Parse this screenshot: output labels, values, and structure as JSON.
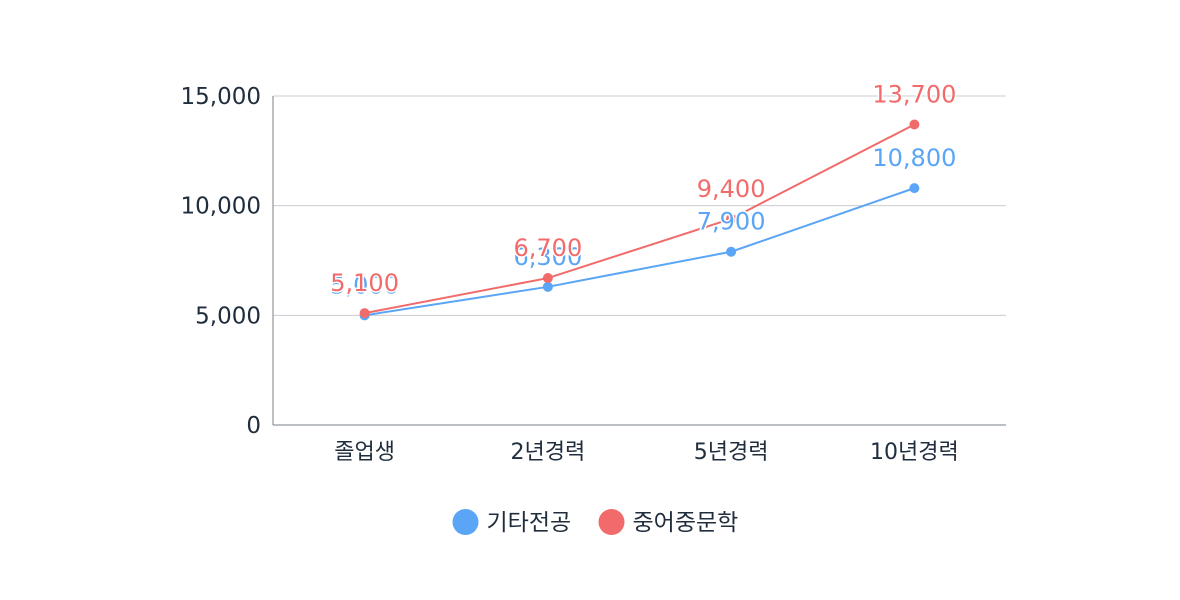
{
  "chart_data": {
    "type": "line",
    "title": "",
    "xlabel": "",
    "ylabel": "",
    "categories": [
      "졸업생",
      "2년경력",
      "5년경력",
      "10년경력"
    ],
    "ylim": [
      0,
      15000
    ],
    "yticks": [
      0,
      5000,
      10000,
      15000
    ],
    "grid": true,
    "legend_position": "bottom",
    "series": [
      {
        "name": "기타전공",
        "color": "#5aa5f5",
        "values": [
          5000,
          6300,
          7900,
          10800
        ],
        "labels": [
          "5,000",
          "6,300",
          "7,900",
          "10,800"
        ]
      },
      {
        "name": "중어중문학",
        "color": "#f26b6b",
        "values": [
          5100,
          6700,
          9400,
          13700
        ],
        "labels": [
          "5,100",
          "6,700",
          "9,400",
          "13,700"
        ]
      }
    ],
    "ytick_labels": [
      "0",
      "5,000",
      "10,000",
      "15,000"
    ]
  }
}
